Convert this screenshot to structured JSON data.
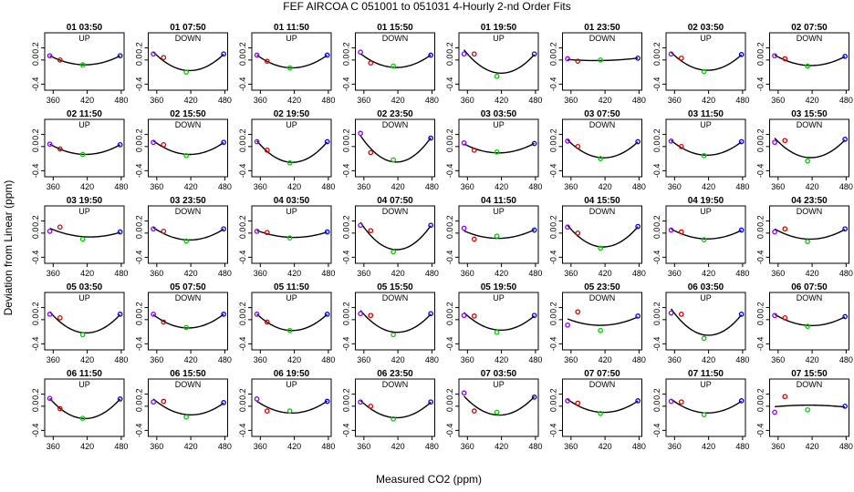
{
  "chart_data": {
    "type": "scatter",
    "title": "FEF   AIRCOA C   051001 to 051031   4-Hourly 2-nd Order Fits",
    "xlabel": "Measured CO2 (ppm)",
    "ylabel": "Deviation from Linear (ppm)",
    "xlim": [
      345,
      485
    ],
    "ylim": [
      -0.5,
      0.45
    ],
    "xticks": [
      "360",
      "420",
      "480"
    ],
    "yticks": [
      "-0.4",
      "0.0",
      "0.2"
    ],
    "x_standards": [
      354,
      372,
      412,
      478
    ],
    "point_colors": [
      "#8a00ff",
      "#dd0000",
      "#00cc00",
      "#0000ff"
    ],
    "curve_color": "#000000",
    "panels": [
      {
        "label": "01 03:50",
        "dir": "UP",
        "pts": [
          0.07,
          0.0,
          -0.08,
          0.07
        ]
      },
      {
        "label": "01 07:50",
        "dir": "DOWN",
        "pts": [
          0.1,
          0.04,
          -0.2,
          0.1
        ]
      },
      {
        "label": "01 11:50",
        "dir": "UP",
        "pts": [
          0.08,
          -0.02,
          -0.13,
          0.08
        ]
      },
      {
        "label": "01 15:50",
        "dir": "DOWN",
        "pts": [
          0.13,
          -0.05,
          -0.1,
          0.08
        ]
      },
      {
        "label": "01 19:50",
        "dir": "UP",
        "pts": [
          0.1,
          0.1,
          -0.27,
          0.1
        ]
      },
      {
        "label": "01 23:50",
        "dir": "DOWN",
        "pts": [
          0.02,
          -0.02,
          0.0,
          0.03
        ]
      },
      {
        "label": "02 03:50",
        "dir": "UP",
        "pts": [
          0.1,
          0.03,
          -0.19,
          0.09
        ]
      },
      {
        "label": "02 07:50",
        "dir": "DOWN",
        "pts": [
          0.07,
          0.02,
          -0.1,
          0.06
        ]
      },
      {
        "label": "02 11:50",
        "dir": "UP",
        "pts": [
          0.04,
          -0.04,
          -0.13,
          0.03
        ]
      },
      {
        "label": "02 15:50",
        "dir": "DOWN",
        "pts": [
          0.07,
          0.03,
          -0.15,
          0.07
        ]
      },
      {
        "label": "02 19:50",
        "dir": "UP",
        "pts": [
          0.08,
          -0.06,
          -0.27,
          0.08
        ]
      },
      {
        "label": "02 23:50",
        "dir": "DOWN",
        "pts": [
          0.22,
          -0.1,
          -0.22,
          0.14
        ]
      },
      {
        "label": "03 03:50",
        "dir": "UP",
        "pts": [
          0.06,
          -0.06,
          -0.09,
          0.05
        ]
      },
      {
        "label": "03 07:50",
        "dir": "DOWN",
        "pts": [
          0.09,
          0.0,
          -0.2,
          0.08
        ]
      },
      {
        "label": "03 11:50",
        "dir": "UP",
        "pts": [
          0.09,
          0.0,
          -0.15,
          0.08
        ]
      },
      {
        "label": "03 15:50",
        "dir": "DOWN",
        "pts": [
          0.07,
          0.1,
          -0.24,
          0.12
        ]
      },
      {
        "label": "03 19:50",
        "dir": "UP",
        "pts": [
          0.03,
          0.1,
          -0.1,
          0.02
        ]
      },
      {
        "label": "03 23:50",
        "dir": "DOWN",
        "pts": [
          0.07,
          0.03,
          -0.13,
          0.07
        ]
      },
      {
        "label": "04 03:50",
        "dir": "UP",
        "pts": [
          0.03,
          0.01,
          -0.08,
          0.02
        ]
      },
      {
        "label": "04 07:50",
        "dir": "DOWN",
        "pts": [
          0.13,
          0.04,
          -0.31,
          0.13
        ]
      },
      {
        "label": "04 11:50",
        "dir": "UP",
        "pts": [
          0.08,
          -0.1,
          -0.05,
          0.05
        ]
      },
      {
        "label": "04 15:50",
        "dir": "DOWN",
        "pts": [
          0.1,
          0.0,
          -0.25,
          0.11
        ]
      },
      {
        "label": "04 19:50",
        "dir": "UP",
        "pts": [
          0.05,
          0.02,
          -0.11,
          0.05
        ]
      },
      {
        "label": "04 23:50",
        "dir": "DOWN",
        "pts": [
          0.02,
          0.07,
          -0.14,
          0.07
        ]
      },
      {
        "label": "05 03:50",
        "dir": "UP",
        "pts": [
          0.09,
          0.03,
          -0.25,
          0.09
        ]
      },
      {
        "label": "05 07:50",
        "dir": "DOWN",
        "pts": [
          0.09,
          -0.04,
          -0.13,
          0.09
        ]
      },
      {
        "label": "05 11:50",
        "dir": "UP",
        "pts": [
          0.09,
          -0.04,
          -0.18,
          0.09
        ]
      },
      {
        "label": "05 15:50",
        "dir": "DOWN",
        "pts": [
          0.1,
          0.07,
          -0.25,
          0.1
        ]
      },
      {
        "label": "05 19:50",
        "dir": "UP",
        "pts": [
          0.07,
          0.06,
          -0.21,
          0.07
        ]
      },
      {
        "label": "05 23:50",
        "dir": "DOWN",
        "pts": [
          -0.09,
          0.13,
          -0.18,
          0.06
        ]
      },
      {
        "label": "06 03:50",
        "dir": "UP",
        "pts": [
          0.11,
          0.09,
          -0.31,
          0.09
        ]
      },
      {
        "label": "06 07:50",
        "dir": "DOWN",
        "pts": [
          0.07,
          0.03,
          -0.11,
          0.05
        ]
      },
      {
        "label": "06 11:50",
        "dir": "UP",
        "pts": [
          0.13,
          -0.04,
          -0.2,
          0.12
        ]
      },
      {
        "label": "06 15:50",
        "dir": "DOWN",
        "pts": [
          0.07,
          0.08,
          -0.18,
          0.06
        ]
      },
      {
        "label": "06 19:50",
        "dir": "UP",
        "pts": [
          0.12,
          -0.08,
          -0.08,
          0.08
        ]
      },
      {
        "label": "06 23:50",
        "dir": "DOWN",
        "pts": [
          0.07,
          0.0,
          -0.21,
          0.07
        ]
      },
      {
        "label": "07 03:50",
        "dir": "UP",
        "pts": [
          0.22,
          -0.08,
          -0.1,
          0.15
        ]
      },
      {
        "label": "07 07:50",
        "dir": "DOWN",
        "pts": [
          0.09,
          0.05,
          -0.12,
          0.09
        ]
      },
      {
        "label": "07 11:50",
        "dir": "UP",
        "pts": [
          0.08,
          0.07,
          -0.14,
          0.09
        ]
      },
      {
        "label": "07 15:50",
        "dir": "DOWN",
        "pts": [
          -0.1,
          0.16,
          -0.06,
          0.0
        ]
      }
    ]
  }
}
